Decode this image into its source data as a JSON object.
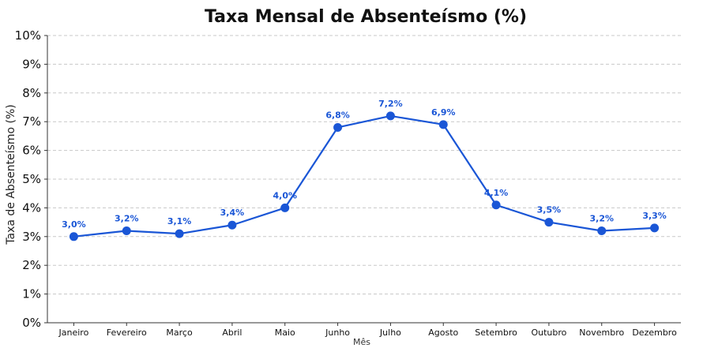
{
  "chart_data": {
    "type": "line",
    "title": "Taxa Mensal de Absenteísmo (%)",
    "xlabel": "Mês",
    "ylabel": "Taxa de Absenteísmo (%)",
    "categories": [
      "Janeiro",
      "Fevereiro",
      "Março",
      "Abril",
      "Maio",
      "Junho",
      "Julho",
      "Agosto",
      "Setembro",
      "Outubro",
      "Novembro",
      "Dezembro"
    ],
    "values": [
      3.0,
      3.2,
      3.1,
      3.4,
      4.0,
      6.8,
      7.2,
      6.9,
      4.1,
      3.5,
      3.2,
      3.3
    ],
    "data_labels": [
      "3,0%",
      "3,2%",
      "3,1%",
      "3,4%",
      "4,0%",
      "6,8%",
      "7,2%",
      "6,9%",
      "4,1%",
      "3,5%",
      "3,2%",
      "3,3%"
    ],
    "ylim": [
      0,
      10
    ],
    "yticks": [
      0,
      1,
      2,
      3,
      4,
      5,
      6,
      7,
      8,
      9,
      10
    ],
    "ytick_labels": [
      "0%",
      "1%",
      "2%",
      "3%",
      "4%",
      "5%",
      "6%",
      "7%",
      "8%",
      "9%",
      "10%"
    ],
    "grid": true,
    "color": "#1a56d6"
  }
}
